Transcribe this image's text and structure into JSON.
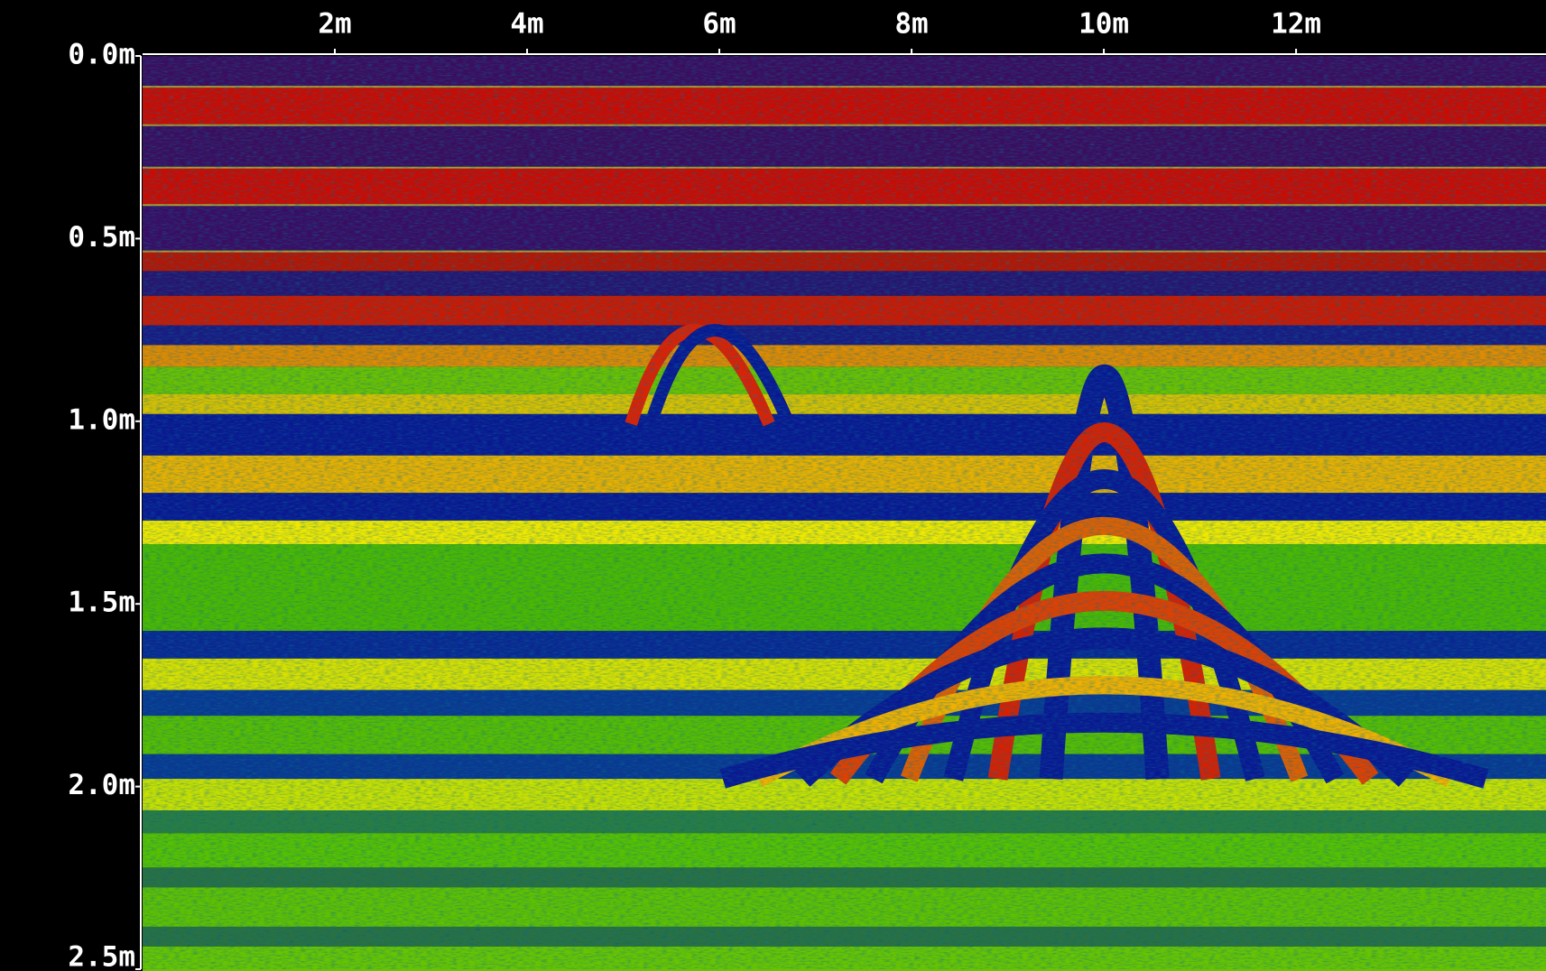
{
  "chart_data": {
    "type": "heatmap",
    "xlim": [
      0,
      14.6
    ],
    "xticks": [
      {
        "value": 2,
        "label": "2m"
      },
      {
        "value": 4,
        "label": "4m"
      },
      {
        "value": 6,
        "label": "6m"
      },
      {
        "value": 8,
        "label": "8m"
      },
      {
        "value": 10,
        "label": "10m"
      },
      {
        "value": 12,
        "label": "12m"
      }
    ],
    "ylim": [
      0,
      2.5
    ],
    "y_reversed": true,
    "yticks": [
      {
        "value": 0,
        "label": "0.0m"
      },
      {
        "value": 0.5,
        "label": "0.5m"
      },
      {
        "value": 1,
        "label": "1.0m"
      },
      {
        "value": 1.5,
        "label": "1.5m"
      },
      {
        "value": 2,
        "label": "2.0m"
      },
      {
        "value": 2.5,
        "label": "2.5m"
      }
    ]
  }
}
